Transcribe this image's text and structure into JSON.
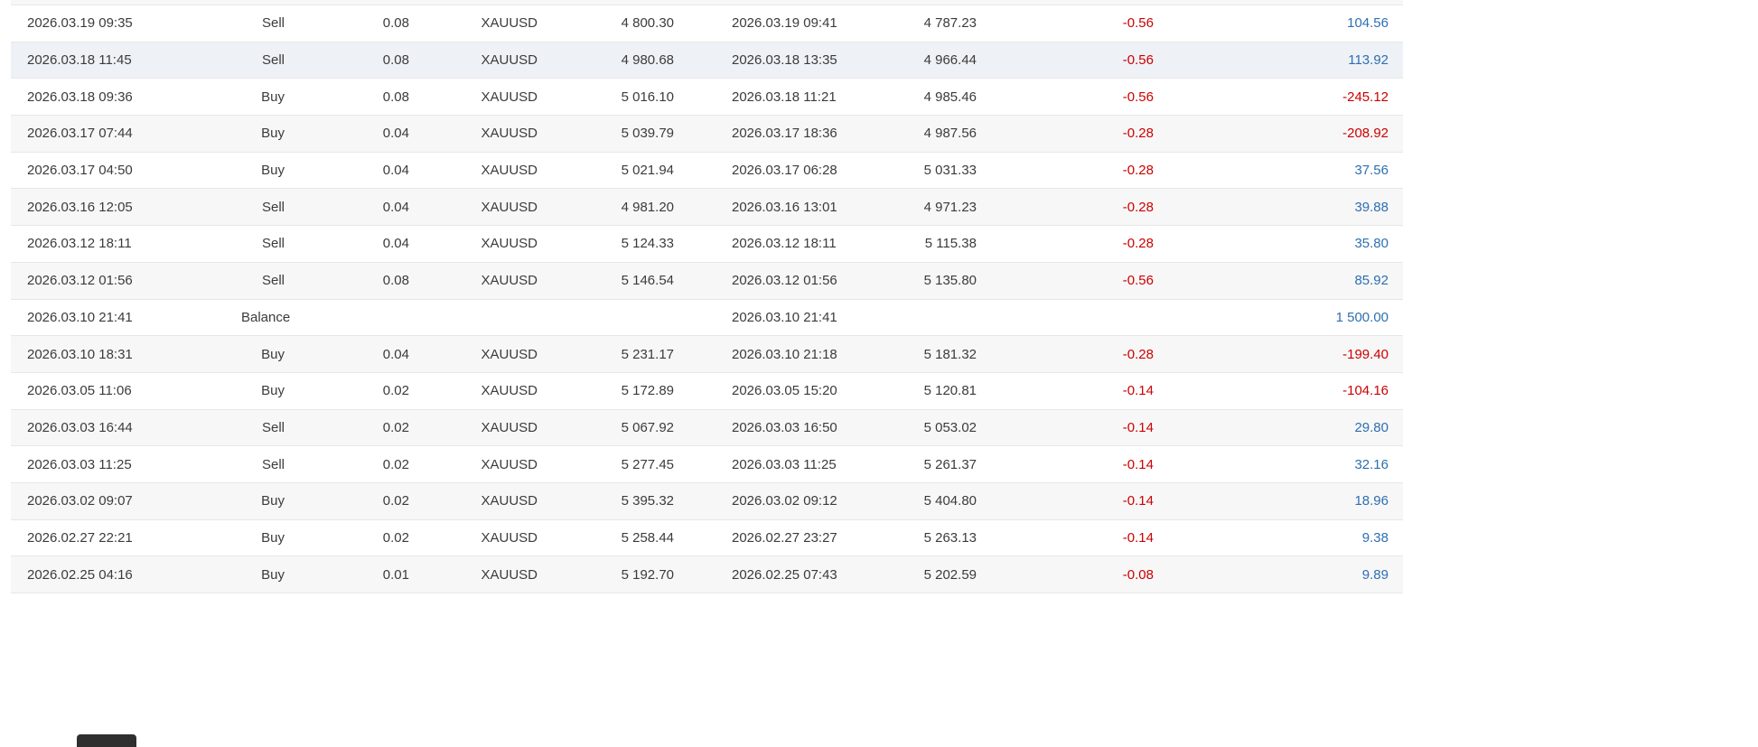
{
  "app": {
    "description": "Trading account history table (closed deals)",
    "symbol_shown": "XAUUSD"
  },
  "theme": {
    "text": "#3b3b3b",
    "negative": "#cc0000",
    "positive": "#2e6fb2",
    "stripe": "#f7f7f7",
    "highlight": "#eef1f6",
    "border": "#e7e7e7",
    "tooltip": "#2f2f2f"
  },
  "table": {
    "columns": [
      "open_time",
      "type",
      "volume",
      "symbol",
      "open_price",
      "close_time",
      "close_price",
      "commission",
      "profit"
    ],
    "rows": [
      {
        "open_time": "2026.03.19 09:35",
        "type": "Sell",
        "volume": "0.08",
        "symbol": "XAUUSD",
        "open_price": "4 800.30",
        "close_time": "2026.03.19 09:41",
        "close_price": "4 787.23",
        "commission": "-0.56",
        "profit": "104.56",
        "highlighted": false
      },
      {
        "open_time": "2026.03.18 11:45",
        "type": "Sell",
        "volume": "0.08",
        "symbol": "XAUUSD",
        "open_price": "4 980.68",
        "close_time": "2026.03.18 13:35",
        "close_price": "4 966.44",
        "commission": "-0.56",
        "profit": "113.92",
        "highlighted": true
      },
      {
        "open_time": "2026.03.18 09:36",
        "type": "Buy",
        "volume": "0.08",
        "symbol": "XAUUSD",
        "open_price": "5 016.10",
        "close_time": "2026.03.18 11:21",
        "close_price": "4 985.46",
        "commission": "-0.56",
        "profit": "-245.12",
        "highlighted": false
      },
      {
        "open_time": "2026.03.17 07:44",
        "type": "Buy",
        "volume": "0.04",
        "symbol": "XAUUSD",
        "open_price": "5 039.79",
        "close_time": "2026.03.17 18:36",
        "close_price": "4 987.56",
        "commission": "-0.28",
        "profit": "-208.92",
        "highlighted": false
      },
      {
        "open_time": "2026.03.17 04:50",
        "type": "Buy",
        "volume": "0.04",
        "symbol": "XAUUSD",
        "open_price": "5 021.94",
        "close_time": "2026.03.17 06:28",
        "close_price": "5 031.33",
        "commission": "-0.28",
        "profit": "37.56",
        "highlighted": false
      },
      {
        "open_time": "2026.03.16 12:05",
        "type": "Sell",
        "volume": "0.04",
        "symbol": "XAUUSD",
        "open_price": "4 981.20",
        "close_time": "2026.03.16 13:01",
        "close_price": "4 971.23",
        "commission": "-0.28",
        "profit": "39.88",
        "highlighted": false
      },
      {
        "open_time": "2026.03.12 18:11",
        "type": "Sell",
        "volume": "0.04",
        "symbol": "XAUUSD",
        "open_price": "5 124.33",
        "close_time": "2026.03.12 18:11",
        "close_price": "5 115.38",
        "commission": "-0.28",
        "profit": "35.80",
        "highlighted": false
      },
      {
        "open_time": "2026.03.12 01:56",
        "type": "Sell",
        "volume": "0.08",
        "symbol": "XAUUSD",
        "open_price": "5 146.54",
        "close_time": "2026.03.12 01:56",
        "close_price": "5 135.80",
        "commission": "-0.56",
        "profit": "85.92",
        "highlighted": false
      },
      {
        "open_time": "2026.03.10 21:41",
        "type": "Balance",
        "volume": "",
        "symbol": "",
        "open_price": "",
        "close_time": "2026.03.10 21:41",
        "close_price": "",
        "commission": "",
        "profit": "1 500.00",
        "highlighted": false
      },
      {
        "open_time": "2026.03.10 18:31",
        "type": "Buy",
        "volume": "0.04",
        "symbol": "XAUUSD",
        "open_price": "5 231.17",
        "close_time": "2026.03.10 21:18",
        "close_price": "5 181.32",
        "commission": "-0.28",
        "profit": "-199.40",
        "highlighted": false
      },
      {
        "open_time": "2026.03.05 11:06",
        "type": "Buy",
        "volume": "0.02",
        "symbol": "XAUUSD",
        "open_price": "5 172.89",
        "close_time": "2026.03.05 15:20",
        "close_price": "5 120.81",
        "commission": "-0.14",
        "profit": "-104.16",
        "highlighted": false
      },
      {
        "open_time": "2026.03.03 16:44",
        "type": "Sell",
        "volume": "0.02",
        "symbol": "XAUUSD",
        "open_price": "5 067.92",
        "close_time": "2026.03.03 16:50",
        "close_price": "5 053.02",
        "commission": "-0.14",
        "profit": "29.80",
        "highlighted": false
      },
      {
        "open_time": "2026.03.03 11:25",
        "type": "Sell",
        "volume": "0.02",
        "symbol": "XAUUSD",
        "open_price": "5 277.45",
        "close_time": "2026.03.03 11:25",
        "close_price": "5 261.37",
        "commission": "-0.14",
        "profit": "32.16",
        "highlighted": false
      },
      {
        "open_time": "2026.03.02 09:07",
        "type": "Buy",
        "volume": "0.02",
        "symbol": "XAUUSD",
        "open_price": "5 395.32",
        "close_time": "2026.03.02 09:12",
        "close_price": "5 404.80",
        "commission": "-0.14",
        "profit": "18.96",
        "highlighted": false
      },
      {
        "open_time": "2026.02.27 22:21",
        "type": "Buy",
        "volume": "0.02",
        "symbol": "XAUUSD",
        "open_price": "5 258.44",
        "close_time": "2026.02.27 23:27",
        "close_price": "5 263.13",
        "commission": "-0.14",
        "profit": "9.38",
        "highlighted": false
      },
      {
        "open_time": "2026.02.25 04:16",
        "type": "Buy",
        "volume": "0.01",
        "symbol": "XAUUSD",
        "open_price": "5 192.70",
        "close_time": "2026.02.25 07:43",
        "close_price": "5 202.59",
        "commission": "-0.08",
        "profit": "9.89",
        "highlighted": false
      }
    ]
  }
}
